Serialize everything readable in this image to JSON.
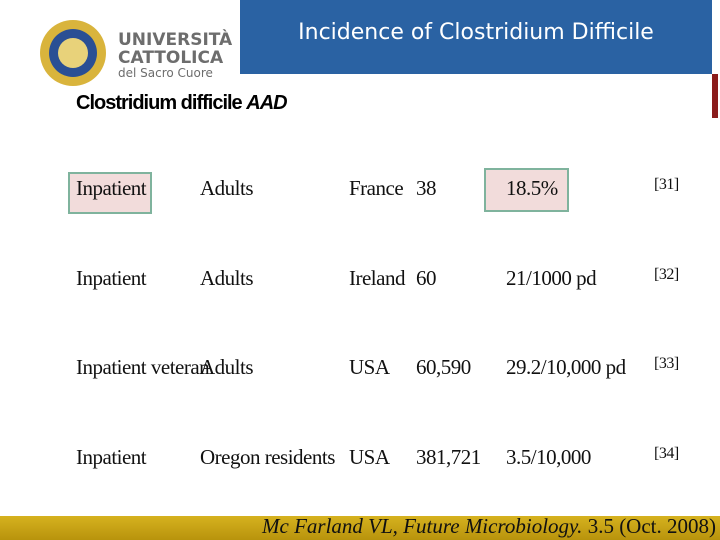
{
  "header": {
    "title": "Incidence of Clostridium Difficile"
  },
  "logo": {
    "line1": "UNIVERSITÀ",
    "line2": "CATTOLICA",
    "line3": "del Sacro Cuore"
  },
  "table": {
    "heading": "Clostridium difficile",
    "heading_italic": "AAD",
    "rows": [
      [
        "Inpatient",
        "Adults",
        "France",
        "38",
        "18.5%",
        "[31]"
      ],
      [
        "Inpatient",
        "Adults",
        "Ireland",
        "60",
        "21/1000 pd",
        "[32]"
      ],
      [
        "Inpatient veteran",
        "Adults",
        "USA",
        "60,590",
        "29.2/10,000 pd",
        "[33]"
      ],
      [
        "Inpatient",
        "Oregon residents",
        "USA",
        "381,721",
        "3.5/10,000",
        "[34]"
      ]
    ]
  },
  "footer": {
    "citation_italic": "Mc Farland VL, Future Microbiology.",
    "citation": "3.5 (Oct. 2008)"
  }
}
